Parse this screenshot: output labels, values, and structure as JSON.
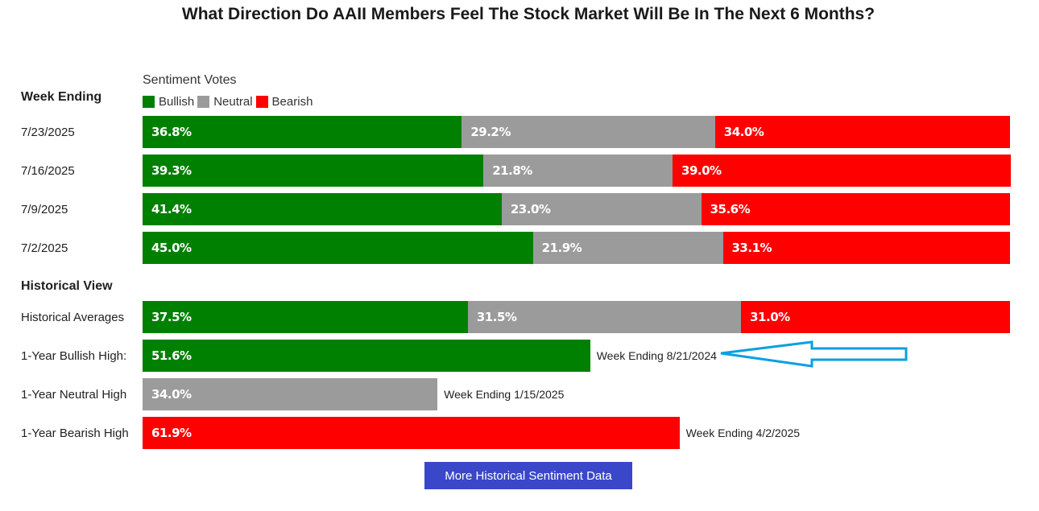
{
  "title": "What Direction Do AAII Members Feel The Stock Market Will Be In The Next 6 Months?",
  "sentiment_title": "Sentiment Votes",
  "legend": [
    {
      "label": "Bullish",
      "color": "#008000"
    },
    {
      "label": "Neutral",
      "color": "#9b9b9b"
    },
    {
      "label": "Bearish",
      "color": "#ff0000"
    }
  ],
  "week_header": "Week Ending",
  "historical_header": "Historical View",
  "button_label": "More Historical Sentiment Data",
  "chart_data": {
    "type": "bar",
    "stacked": true,
    "weeks": [
      {
        "label": "7/23/2025",
        "bullish": 36.8,
        "neutral": 29.2,
        "bearish": 34.0,
        "texts": [
          "36.8%",
          "29.2%",
          "34.0%"
        ]
      },
      {
        "label": "7/16/2025",
        "bullish": 39.3,
        "neutral": 21.8,
        "bearish": 39.0,
        "texts": [
          "39.3%",
          "21.8%",
          "39.0%"
        ]
      },
      {
        "label": "7/9/2025",
        "bullish": 41.4,
        "neutral": 23.0,
        "bearish": 35.6,
        "texts": [
          "41.4%",
          "23.0%",
          "35.6%"
        ]
      },
      {
        "label": "7/2/2025",
        "bullish": 45.0,
        "neutral": 21.9,
        "bearish": 33.1,
        "texts": [
          "45.0%",
          "21.9%",
          "33.1%"
        ]
      }
    ],
    "historical": {
      "averages": {
        "label": "Historical Averages",
        "bullish": 37.5,
        "neutral": 31.5,
        "bearish": 31.0,
        "texts": [
          "37.5%",
          "31.5%",
          "31.0%"
        ]
      },
      "highs": [
        {
          "label": "1-Year Bullish High:",
          "type": "bullish",
          "value": 51.6,
          "text": "51.6%",
          "note": "Week Ending 8/21/2024"
        },
        {
          "label": "1-Year Neutral High",
          "type": "neutral",
          "value": 34.0,
          "text": "34.0%",
          "note": "Week Ending 1/15/2025"
        },
        {
          "label": "1-Year Bearish High",
          "type": "bearish",
          "value": 61.9,
          "text": "61.9%",
          "note": "Week Ending 4/2/2025"
        }
      ]
    },
    "colors": {
      "bullish": "#008000",
      "neutral": "#9b9b9b",
      "bearish": "#ff0000"
    },
    "annotation_arrow_color": "#0aa0e0"
  }
}
